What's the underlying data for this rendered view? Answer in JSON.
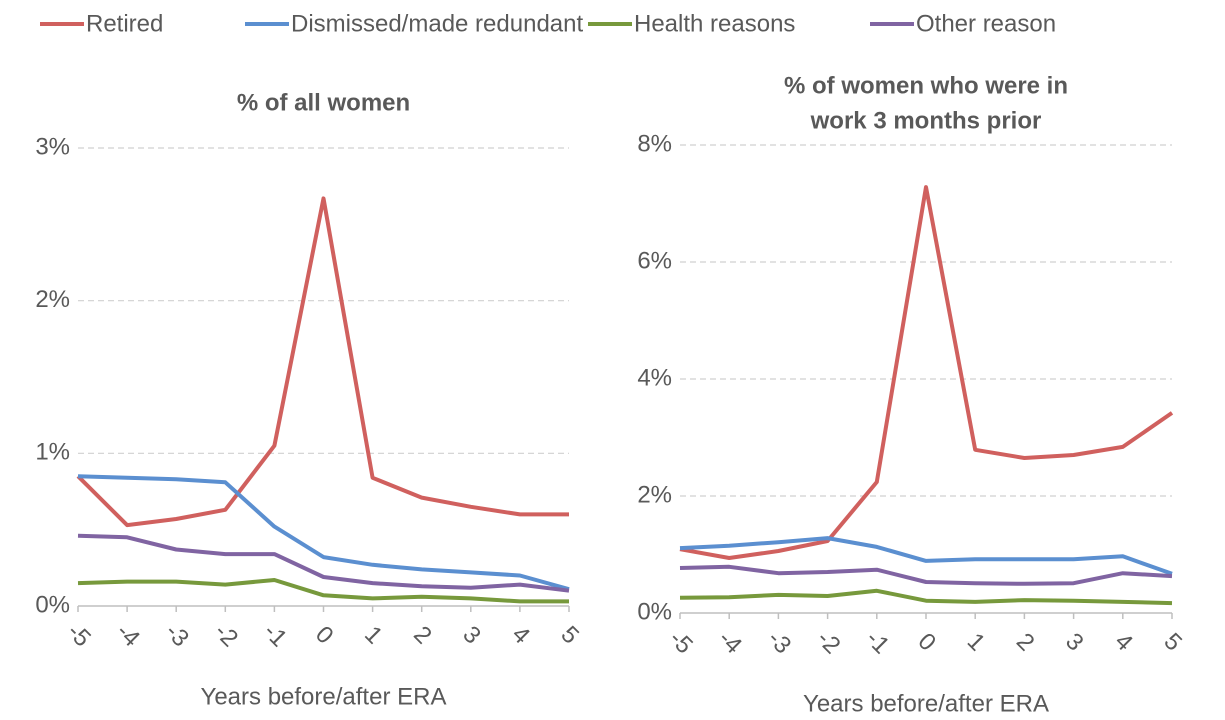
{
  "chart_data": [
    {
      "type": "line",
      "title": [
        "% of all women"
      ],
      "xlabel": "Years before/after ERA",
      "x": [
        -5,
        -4,
        -3,
        -2,
        -1,
        0,
        1,
        2,
        3,
        4,
        5
      ],
      "xlim": [
        -5,
        5
      ],
      "ylim": [
        0,
        3
      ],
      "yticks": [
        {
          "value": 0,
          "label": "0%"
        },
        {
          "value": 1,
          "label": "1%"
        },
        {
          "value": 2,
          "label": "2%"
        },
        {
          "value": 3,
          "label": "3%"
        }
      ],
      "grid": true,
      "legend": "top",
      "series": [
        {
          "name": "Retired",
          "color": "#d0605e",
          "values": [
            0.85,
            0.53,
            0.57,
            0.63,
            1.05,
            2.67,
            0.84,
            0.71,
            0.65,
            0.6,
            0.6
          ]
        },
        {
          "name": "Dismissed/made redundant",
          "color": "#5b8fd0",
          "values": [
            0.85,
            0.84,
            0.83,
            0.81,
            0.52,
            0.32,
            0.27,
            0.24,
            0.22,
            0.2,
            0.11
          ]
        },
        {
          "name": "Health reasons",
          "color": "#77993c",
          "values": [
            0.15,
            0.16,
            0.16,
            0.14,
            0.17,
            0.07,
            0.05,
            0.06,
            0.05,
            0.03,
            0.03
          ]
        },
        {
          "name": "Other reason",
          "color": "#8064a2",
          "values": [
            0.46,
            0.45,
            0.37,
            0.34,
            0.34,
            0.19,
            0.15,
            0.13,
            0.12,
            0.14,
            0.1
          ]
        }
      ]
    },
    {
      "type": "line",
      "title": [
        "% of women who were in",
        "work 3 months prior"
      ],
      "xlabel": "Years before/after ERA",
      "x": [
        -5,
        -4,
        -3,
        -2,
        -1,
        0,
        1,
        2,
        3,
        4,
        5
      ],
      "xlim": [
        -5,
        5
      ],
      "ylim": [
        0,
        8
      ],
      "yticks": [
        {
          "value": 0,
          "label": "0%"
        },
        {
          "value": 2,
          "label": "2%"
        },
        {
          "value": 4,
          "label": "4%"
        },
        {
          "value": 6,
          "label": "6%"
        },
        {
          "value": 8,
          "label": "8%"
        }
      ],
      "grid": true,
      "series": [
        {
          "color": "#d0605e",
          "values": [
            1.09,
            0.94,
            1.06,
            1.23,
            2.24,
            7.28,
            2.79,
            2.65,
            2.7,
            2.84,
            3.42
          ]
        },
        {
          "color": "#5b8fd0",
          "values": [
            1.11,
            1.15,
            1.21,
            1.28,
            1.13,
            0.89,
            0.92,
            0.92,
            0.92,
            0.97,
            0.67
          ]
        },
        {
          "color": "#77993c",
          "values": [
            0.26,
            0.27,
            0.31,
            0.29,
            0.38,
            0.21,
            0.19,
            0.22,
            0.21,
            0.19,
            0.17
          ]
        },
        {
          "color": "#8064a2",
          "values": [
            0.77,
            0.79,
            0.68,
            0.7,
            0.74,
            0.53,
            0.51,
            0.5,
            0.51,
            0.68,
            0.63
          ]
        }
      ]
    }
  ]
}
